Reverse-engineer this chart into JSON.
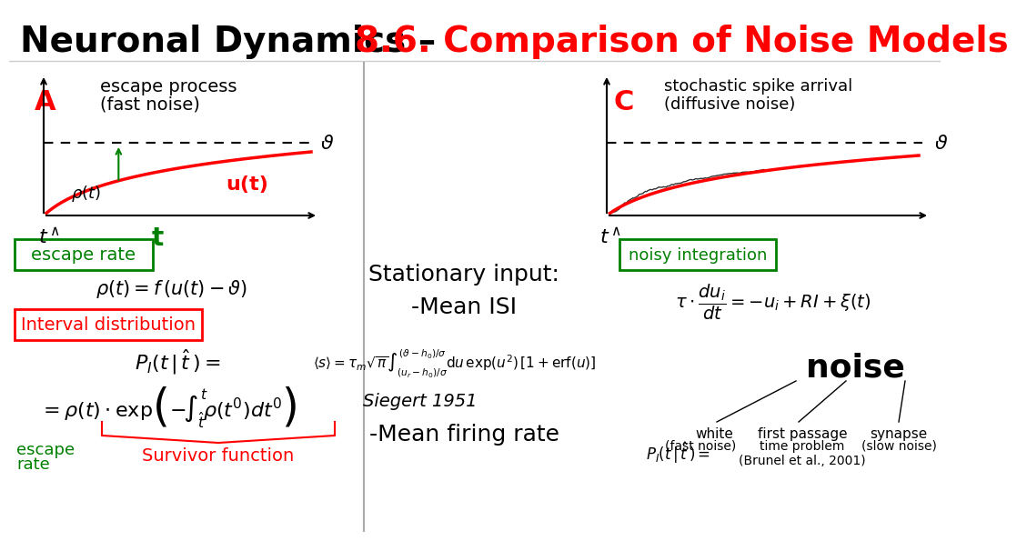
{
  "title_black": "Neuronal Dynamics – ",
  "title_red": "8.6. Comparison of Noise Models",
  "bg_color": "#ffffff",
  "panel_A_label": "A",
  "panel_A_title1": "escape process",
  "panel_A_title2": "(fast noise)",
  "panel_C_label": "C",
  "panel_C_title1": "stochastic spike arrival",
  "panel_C_title2": "(diffusive noise)",
  "escape_rate_box": "escape rate",
  "interval_dist_box": "Interval distribution",
  "noisy_int_box": "noisy integration",
  "stationary_text1": "Stationary input:",
  "stationary_text2": "-Mean ISI",
  "siegert_label": "Siegert 1951",
  "mean_firing": "-Mean firing rate",
  "noise_label": "noise",
  "white_label": "white",
  "synapse_label": "synapse",
  "first_passage_label": "first passage",
  "fast_noise_label": "(fast noise)",
  "slow_noise_label": "(slow noise)",
  "time_problem_label": "time problem",
  "brunel_label": "(Brunel et al., 2001)",
  "escape_rate_label1": "escape",
  "escape_rate_label2": "rate",
  "survivor_label": "Survivor function"
}
